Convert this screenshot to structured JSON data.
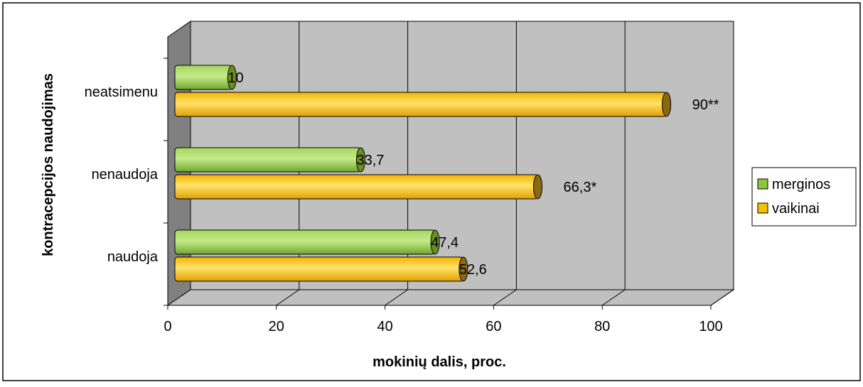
{
  "chart_data": {
    "type": "bar",
    "orientation": "horizontal",
    "three_d": true,
    "categories": [
      "naudoja",
      "nenaudoja",
      "neatsimenu"
    ],
    "series": [
      {
        "name": "merginos",
        "values": [
          47.4,
          33.7,
          10
        ],
        "labels": [
          "47,4",
          "33,7",
          "10"
        ],
        "color": "#8CC63F"
      },
      {
        "name": "vaikinai",
        "values": [
          52.6,
          66.3,
          90
        ],
        "labels": [
          "52,6",
          "66,3*",
          "90**"
        ],
        "color": "#F5C000"
      }
    ],
    "xlabel": "mokinių dalis, proc.",
    "ylabel": "kontracepcijos naudojimas",
    "xlim": [
      0,
      100
    ],
    "xticks": [
      0,
      20,
      40,
      60,
      80,
      100
    ],
    "xtick_labels": [
      "0",
      "20",
      "40",
      "60",
      "80",
      "100"
    ],
    "grid": "vertical",
    "legend_position": "right",
    "colors": {
      "wall": "#C0C0C0",
      "side_wall": "#808080",
      "floor": "#C0C0C0"
    }
  }
}
